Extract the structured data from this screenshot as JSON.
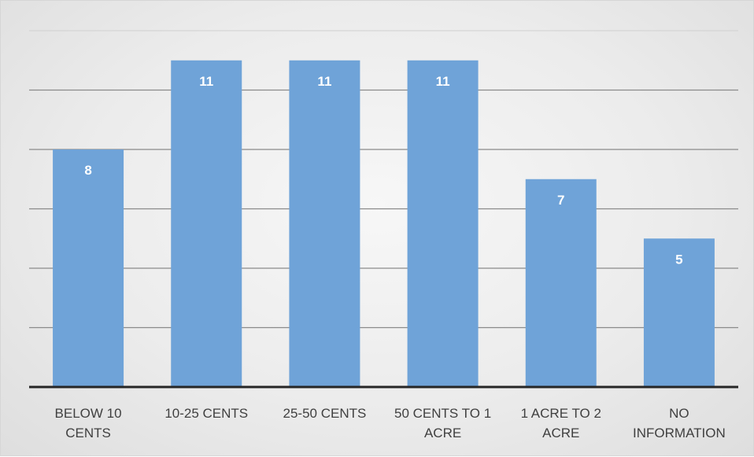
{
  "chart_data": {
    "type": "bar",
    "categories": [
      [
        "BELOW 10",
        "CENTS"
      ],
      [
        "10-25 CENTS"
      ],
      [
        "25-50 CENTS"
      ],
      [
        "50 CENTS TO 1",
        "ACRE"
      ],
      [
        "1 ACRE TO 2",
        "ACRE"
      ],
      [
        "NO",
        "INFORMATION"
      ]
    ],
    "values": [
      8,
      11,
      11,
      11,
      7,
      5
    ],
    "data_labels": [
      "8",
      "11",
      "11",
      "11",
      "7",
      "5"
    ],
    "ylim": [
      0,
      12
    ],
    "grid": true,
    "legend": "none",
    "bar_color": "#6fa3d8",
    "gridline_color": "#8a8a8a",
    "axis_color": "#262626",
    "label_color": "#404040",
    "data_label_color": "#ffffff"
  }
}
